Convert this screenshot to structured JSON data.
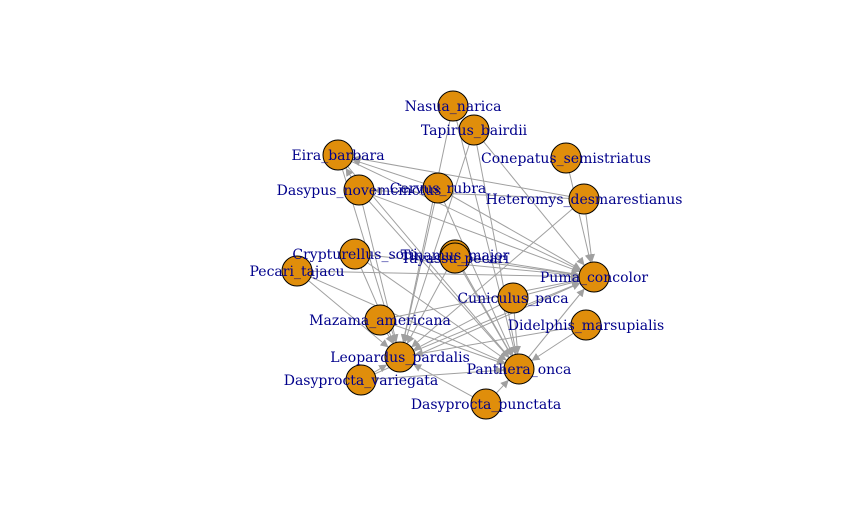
{
  "graph": {
    "colors": {
      "node_fill": "#e08e0b",
      "node_stroke": "#000000",
      "edge": "#a0a0a0",
      "label": "#00008b"
    },
    "nodes": [
      {
        "id": "nasua",
        "label": "Nasua_narica"
      },
      {
        "id": "tapirus",
        "label": "Tapirus_bairdii"
      },
      {
        "id": "eira",
        "label": "Eira_barbara"
      },
      {
        "id": "conepatus",
        "label": "Conepatus_semistriatus"
      },
      {
        "id": "dasypus",
        "label": "Dasypus_novemcinctus"
      },
      {
        "id": "cervus",
        "label": "Cervus_rubra"
      },
      {
        "id": "heteromys",
        "label": "Heteromys_desmarestianus"
      },
      {
        "id": "crypturellus",
        "label": "Crypturellus_soui"
      },
      {
        "id": "tinamus",
        "label": "Tinamus_major"
      },
      {
        "id": "tayassu",
        "label": "Tayassu_pecari"
      },
      {
        "id": "pecari",
        "label": "Pecari_tajacu"
      },
      {
        "id": "puma",
        "label": "Puma_concolor"
      },
      {
        "id": "cuniculus",
        "label": "Cuniculus_paca"
      },
      {
        "id": "mazama",
        "label": "Mazama_americana"
      },
      {
        "id": "didelphis",
        "label": "Didelphis_marsupialis"
      },
      {
        "id": "leopardus",
        "label": "Leopardus_pardalis"
      },
      {
        "id": "panthera",
        "label": "Panthera_onca"
      },
      {
        "id": "dasyprocta_v",
        "label": "Dasyprocta_variegata"
      },
      {
        "id": "dasyprocta_p",
        "label": "Dasyprocta_punctata"
      }
    ],
    "edges": [
      [
        "nasua",
        "leopardus"
      ],
      [
        "nasua",
        "panthera"
      ],
      [
        "tapirus",
        "panthera"
      ],
      [
        "tapirus",
        "leopardus"
      ],
      [
        "tapirus",
        "puma"
      ],
      [
        "eira",
        "puma"
      ],
      [
        "eira",
        "panthera"
      ],
      [
        "eira",
        "leopardus"
      ],
      [
        "conepatus",
        "puma"
      ],
      [
        "dasypus",
        "eira"
      ],
      [
        "dasypus",
        "puma"
      ],
      [
        "dasypus",
        "panthera"
      ],
      [
        "dasypus",
        "leopardus"
      ],
      [
        "cervus",
        "eira"
      ],
      [
        "cervus",
        "panthera"
      ],
      [
        "cervus",
        "leopardus"
      ],
      [
        "cervus",
        "puma"
      ],
      [
        "heteromys",
        "eira"
      ],
      [
        "heteromys",
        "puma"
      ],
      [
        "heteromys",
        "leopardus"
      ],
      [
        "heteromys",
        "dasypus"
      ],
      [
        "crypturellus",
        "puma"
      ],
      [
        "crypturellus",
        "leopardus"
      ],
      [
        "crypturellus",
        "panthera"
      ],
      [
        "tinamus",
        "puma"
      ],
      [
        "tinamus",
        "panthera"
      ],
      [
        "tinamus",
        "leopardus"
      ],
      [
        "tayassu",
        "panthera"
      ],
      [
        "tayassu",
        "puma"
      ],
      [
        "pecari",
        "puma"
      ],
      [
        "pecari",
        "panthera"
      ],
      [
        "pecari",
        "leopardus"
      ],
      [
        "cuniculus",
        "puma"
      ],
      [
        "cuniculus",
        "panthera"
      ],
      [
        "cuniculus",
        "leopardus"
      ],
      [
        "mazama",
        "puma"
      ],
      [
        "mazama",
        "panthera"
      ],
      [
        "mazama",
        "leopardus"
      ],
      [
        "didelphis",
        "panthera"
      ],
      [
        "didelphis",
        "leopardus"
      ],
      [
        "dasyprocta_v",
        "puma"
      ],
      [
        "dasyprocta_v",
        "panthera"
      ],
      [
        "dasyprocta_v",
        "leopardus"
      ],
      [
        "dasyprocta_p",
        "panthera"
      ],
      [
        "dasyprocta_p",
        "leopardus"
      ],
      [
        "panthera",
        "puma"
      ],
      [
        "leopardus",
        "puma"
      ]
    ]
  }
}
